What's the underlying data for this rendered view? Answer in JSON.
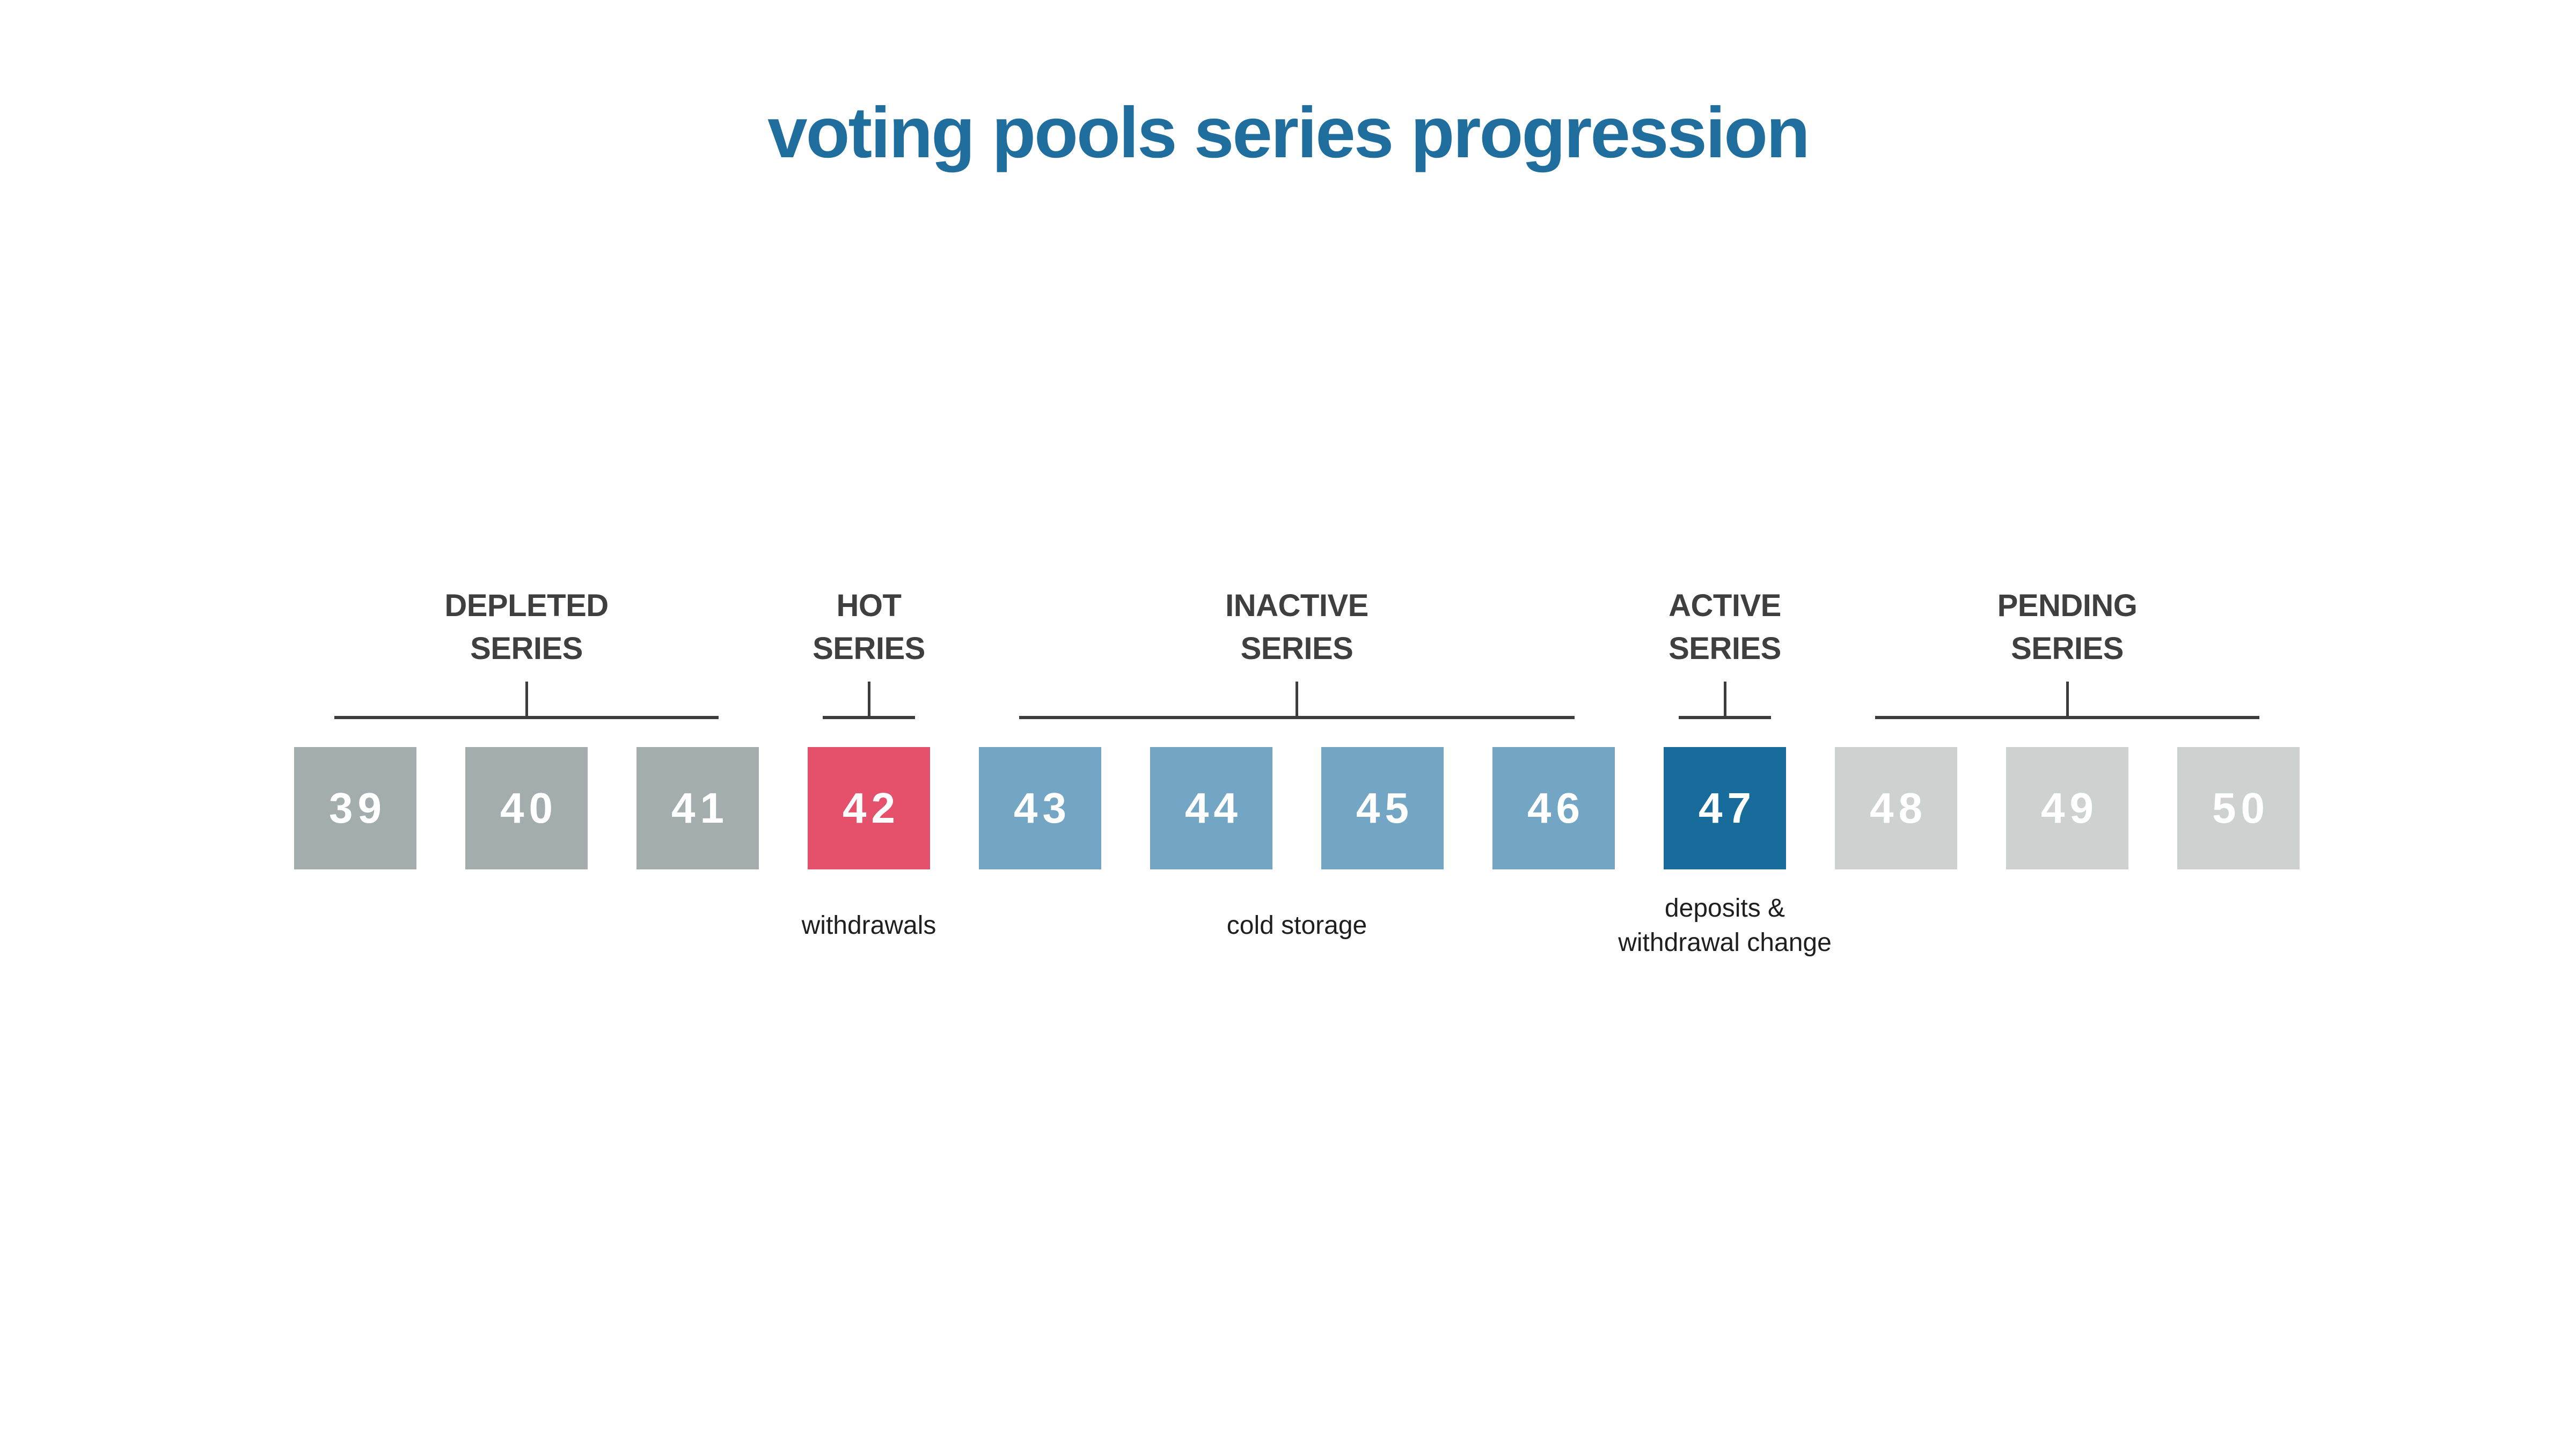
{
  "title": {
    "text": "voting pools series progression"
  },
  "colors": {
    "background": "#ffffff",
    "title": "#1f6e9e",
    "group_label": "#3f3f3f",
    "bracket_line": "#3d3d3d",
    "box_number": "#ffffff",
    "sublabel_text": "#1f1f1f",
    "depleted": "#a4adad",
    "hot": "#e5506b",
    "inactive": "#72a6c4",
    "active": "#186c9b",
    "pending": "#cdd2d1"
  },
  "groups": [
    {
      "id": "depleted",
      "label_lines": [
        "DEPLETED",
        "SERIES"
      ],
      "series": [
        39,
        40,
        41
      ],
      "sublabel_lines": []
    },
    {
      "id": "hot",
      "label_lines": [
        "HOT",
        "SERIES"
      ],
      "series": [
        42
      ],
      "sublabel_lines": [
        "withdrawals"
      ]
    },
    {
      "id": "inactive",
      "label_lines": [
        "INACTIVE",
        "SERIES"
      ],
      "series": [
        43,
        44,
        45,
        46
      ],
      "sublabel_lines": [
        "cold storage"
      ]
    },
    {
      "id": "active",
      "label_lines": [
        "ACTIVE",
        "SERIES"
      ],
      "series": [
        47
      ],
      "sublabel_lines": [
        "deposits &",
        "withdrawal change"
      ]
    },
    {
      "id": "pending",
      "label_lines": [
        "PENDING",
        "SERIES"
      ],
      "series": [
        48,
        49,
        50
      ],
      "sublabel_lines": []
    }
  ]
}
